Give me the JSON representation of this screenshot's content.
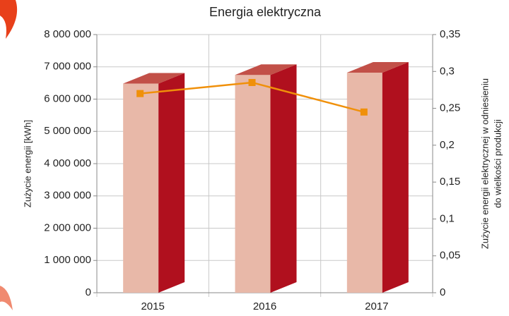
{
  "chart_data": {
    "type": "bar",
    "title": "Energia elektryczna",
    "ylabel": "Zużycie energii [kWh]",
    "y2label": [
      "Zużycie energii elektrycznej w odniesieniu",
      "do wielkości produkcji"
    ],
    "categories": [
      "2015",
      "2016",
      "2017"
    ],
    "series": [
      {
        "type": "bar",
        "color": "#e8b8a8",
        "side_color": "#b0101e",
        "top_color": "#c25048",
        "values": [
          6480000,
          6750000,
          6820000
        ]
      },
      {
        "type": "line",
        "axis": "y2",
        "color": "#f0900a",
        "values": [
          0.27,
          0.285,
          0.245
        ]
      }
    ],
    "ylim": [
      0,
      8000000
    ],
    "yticks": [
      0,
      {
        "value": 1000000,
        "label": "1 000 000"
      },
      {
        "value": 2000000,
        "label": "2 000 000"
      },
      {
        "value": 3000000,
        "label": "3 000 000"
      },
      {
        "value": 4000000,
        "label": "4 000 000"
      },
      {
        "value": 5000000,
        "label": "5 000 000"
      },
      {
        "value": 6000000,
        "label": "6 000 000"
      },
      {
        "value": 7000000,
        "label": "7 000 000"
      },
      {
        "value": 8000000,
        "label": "8 000 000"
      }
    ],
    "y2lim": [
      0,
      0.35
    ],
    "y2ticks": [
      0,
      {
        "value": 0.05,
        "label": "0,05"
      },
      {
        "value": 0.1,
        "label": "0,1"
      },
      {
        "value": 0.15,
        "label": "0,15"
      },
      {
        "value": 0.2,
        "label": "0,2"
      },
      {
        "value": 0.25,
        "label": "0,25"
      },
      {
        "value": 0.3,
        "label": "0,3"
      },
      {
        "value": 0.35,
        "label": "0,35"
      }
    ],
    "grid": true
  }
}
